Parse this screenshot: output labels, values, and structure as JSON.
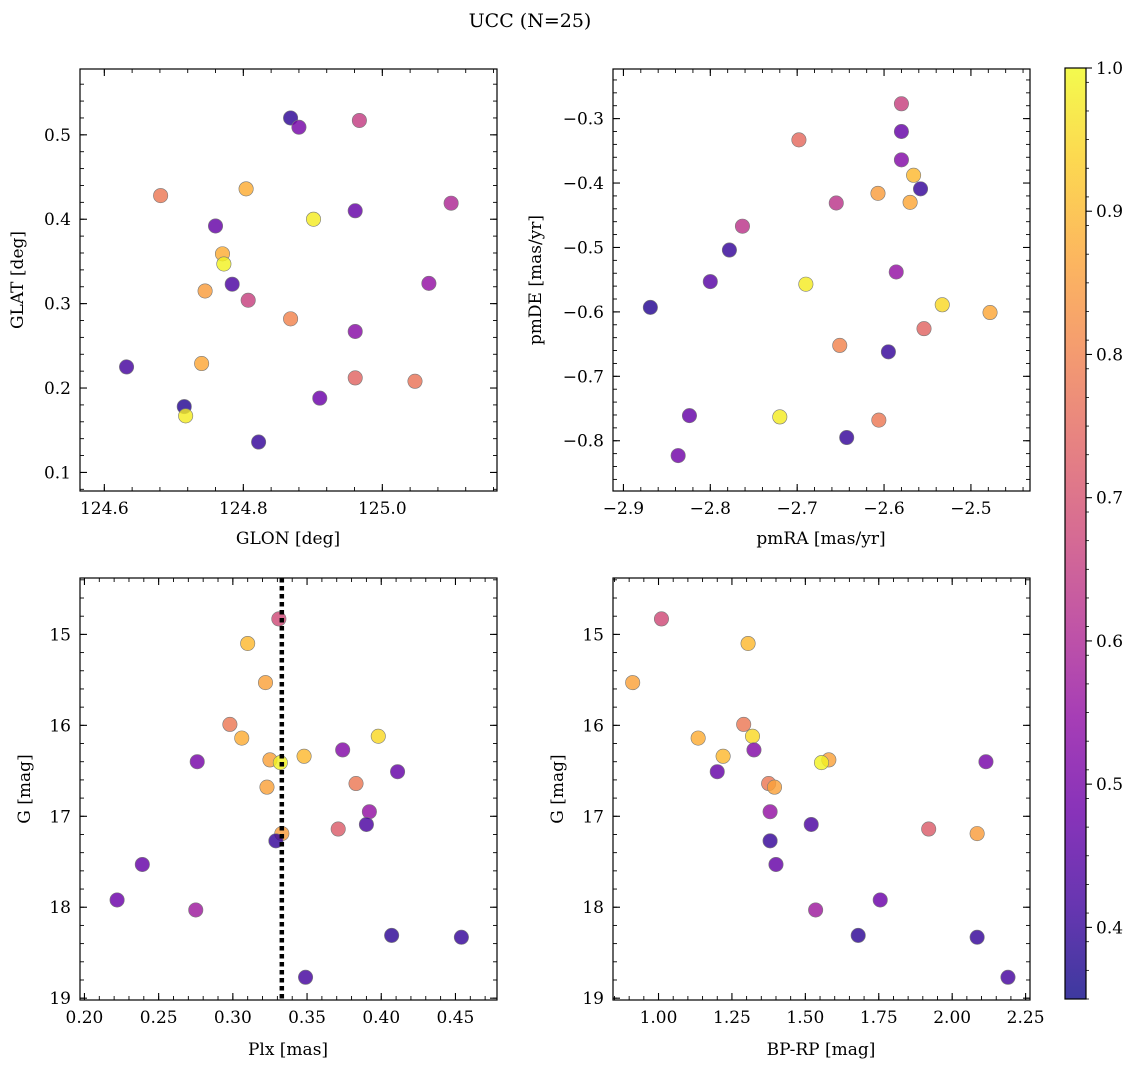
{
  "figure": {
    "title": "UCC (N=25)"
  },
  "colorbar": {
    "min": 0.35,
    "max": 1.0,
    "ticks": [
      "0.4",
      "0.5",
      "0.6",
      "0.7",
      "0.8",
      "0.9",
      "1.0"
    ],
    "colormap": "plasma"
  },
  "chart_data": [
    {
      "id": "p1",
      "type": "scatter",
      "xlabel": "GLON [deg]",
      "ylabel": "GLAT [deg]",
      "xlim": [
        124.565,
        125.165
      ],
      "ylim": [
        0.078,
        0.578
      ],
      "xticks": [
        "124.6",
        "124.8",
        "125.0"
      ],
      "yticks": [
        "0.1",
        "0.2",
        "0.3",
        "0.4",
        "0.5"
      ],
      "y_inverted": false,
      "points": [
        {
          "x": 124.868,
          "y": 0.52,
          "c": 0.39
        },
        {
          "x": 124.88,
          "y": 0.509,
          "c": 0.5
        },
        {
          "x": 124.967,
          "y": 0.517,
          "c": 0.65
        },
        {
          "x": 124.681,
          "y": 0.428,
          "c": 0.78
        },
        {
          "x": 124.804,
          "y": 0.436,
          "c": 0.88
        },
        {
          "x": 124.901,
          "y": 0.4,
          "c": 0.98
        },
        {
          "x": 124.961,
          "y": 0.41,
          "c": 0.47
        },
        {
          "x": 125.099,
          "y": 0.419,
          "c": 0.6
        },
        {
          "x": 124.76,
          "y": 0.392,
          "c": 0.47
        },
        {
          "x": 124.77,
          "y": 0.359,
          "c": 0.88
        },
        {
          "x": 124.772,
          "y": 0.347,
          "c": 0.99
        },
        {
          "x": 124.784,
          "y": 0.323,
          "c": 0.43
        },
        {
          "x": 124.745,
          "y": 0.315,
          "c": 0.85
        },
        {
          "x": 124.807,
          "y": 0.304,
          "c": 0.66
        },
        {
          "x": 124.868,
          "y": 0.282,
          "c": 0.8
        },
        {
          "x": 125.067,
          "y": 0.324,
          "c": 0.55
        },
        {
          "x": 124.961,
          "y": 0.267,
          "c": 0.53
        },
        {
          "x": 124.632,
          "y": 0.225,
          "c": 0.42
        },
        {
          "x": 124.74,
          "y": 0.229,
          "c": 0.87
        },
        {
          "x": 124.961,
          "y": 0.212,
          "c": 0.74
        },
        {
          "x": 125.047,
          "y": 0.208,
          "c": 0.77
        },
        {
          "x": 124.715,
          "y": 0.178,
          "c": 0.38
        },
        {
          "x": 124.717,
          "y": 0.167,
          "c": 0.98
        },
        {
          "x": 124.91,
          "y": 0.188,
          "c": 0.48
        },
        {
          "x": 124.822,
          "y": 0.136,
          "c": 0.4
        }
      ]
    },
    {
      "id": "p2",
      "type": "scatter",
      "xlabel": "pmRA [mas/yr]",
      "ylabel": "pmDE [mas/yr]",
      "xlim": [
        -2.912,
        -2.432
      ],
      "ylim": [
        -0.878,
        -0.223
      ],
      "xticks": [
        "−2.9",
        "−2.8",
        "−2.7",
        "−2.6",
        "−2.5"
      ],
      "yticks": [
        "−0.3",
        "−0.4",
        "−0.5",
        "−0.6",
        "−0.7",
        "−0.8"
      ],
      "y_inverted": false,
      "points": [
        {
          "x": -2.58,
          "y": -0.277,
          "c": 0.66
        },
        {
          "x": -2.58,
          "y": -0.32,
          "c": 0.47
        },
        {
          "x": -2.698,
          "y": -0.333,
          "c": 0.75
        },
        {
          "x": -2.58,
          "y": -0.364,
          "c": 0.52
        },
        {
          "x": -2.566,
          "y": -0.388,
          "c": 0.9
        },
        {
          "x": -2.558,
          "y": -0.409,
          "c": 0.4
        },
        {
          "x": -2.607,
          "y": -0.416,
          "c": 0.85
        },
        {
          "x": -2.57,
          "y": -0.43,
          "c": 0.87
        },
        {
          "x": -2.655,
          "y": -0.431,
          "c": 0.63
        },
        {
          "x": -2.763,
          "y": -0.467,
          "c": 0.63
        },
        {
          "x": -2.778,
          "y": -0.504,
          "c": 0.4
        },
        {
          "x": -2.8,
          "y": -0.553,
          "c": 0.45
        },
        {
          "x": -2.69,
          "y": -0.557,
          "c": 0.98
        },
        {
          "x": -2.586,
          "y": -0.538,
          "c": 0.55
        },
        {
          "x": -2.869,
          "y": -0.593,
          "c": 0.38
        },
        {
          "x": -2.533,
          "y": -0.589,
          "c": 0.95
        },
        {
          "x": -2.478,
          "y": -0.601,
          "c": 0.87
        },
        {
          "x": -2.554,
          "y": -0.626,
          "c": 0.74
        },
        {
          "x": -2.651,
          "y": -0.652,
          "c": 0.8
        },
        {
          "x": -2.595,
          "y": -0.662,
          "c": 0.4
        },
        {
          "x": -2.824,
          "y": -0.761,
          "c": 0.47
        },
        {
          "x": -2.72,
          "y": -0.763,
          "c": 0.98
        },
        {
          "x": -2.606,
          "y": -0.768,
          "c": 0.78
        },
        {
          "x": -2.643,
          "y": -0.795,
          "c": 0.4
        },
        {
          "x": -2.837,
          "y": -0.823,
          "c": 0.49
        }
      ]
    },
    {
      "id": "p3",
      "type": "scatter",
      "xlabel": "Plx [mas]",
      "ylabel": "G [mag]",
      "xlim": [
        0.197,
        0.478
      ],
      "ylim": [
        14.38,
        19.02
      ],
      "xticks": [
        "0.20",
        "0.25",
        "0.30",
        "0.35",
        "0.40",
        "0.45"
      ],
      "yticks": [
        "15",
        "16",
        "17",
        "18",
        "19"
      ],
      "y_inverted": true,
      "vline": {
        "x": 0.333,
        "style": "dotted"
      },
      "points": [
        {
          "x": 0.331,
          "y": 14.83,
          "c": 0.68
        },
        {
          "x": 0.31,
          "y": 15.1,
          "c": 0.9
        },
        {
          "x": 0.322,
          "y": 15.53,
          "c": 0.86
        },
        {
          "x": 0.298,
          "y": 15.99,
          "c": 0.78
        },
        {
          "x": 0.306,
          "y": 16.14,
          "c": 0.88
        },
        {
          "x": 0.398,
          "y": 16.12,
          "c": 0.95
        },
        {
          "x": 0.348,
          "y": 16.34,
          "c": 0.9
        },
        {
          "x": 0.374,
          "y": 16.27,
          "c": 0.52
        },
        {
          "x": 0.325,
          "y": 16.38,
          "c": 0.86
        },
        {
          "x": 0.332,
          "y": 16.41,
          "c": 0.99
        },
        {
          "x": 0.276,
          "y": 16.4,
          "c": 0.5
        },
        {
          "x": 0.411,
          "y": 16.51,
          "c": 0.47
        },
        {
          "x": 0.383,
          "y": 16.64,
          "c": 0.78
        },
        {
          "x": 0.323,
          "y": 16.68,
          "c": 0.86
        },
        {
          "x": 0.392,
          "y": 16.95,
          "c": 0.55
        },
        {
          "x": 0.371,
          "y": 17.14,
          "c": 0.72
        },
        {
          "x": 0.333,
          "y": 17.19,
          "c": 0.85
        },
        {
          "x": 0.39,
          "y": 17.09,
          "c": 0.43
        },
        {
          "x": 0.329,
          "y": 17.27,
          "c": 0.4
        },
        {
          "x": 0.239,
          "y": 17.53,
          "c": 0.47
        },
        {
          "x": 0.222,
          "y": 17.92,
          "c": 0.48
        },
        {
          "x": 0.275,
          "y": 18.03,
          "c": 0.57
        },
        {
          "x": 0.407,
          "y": 18.31,
          "c": 0.39
        },
        {
          "x": 0.454,
          "y": 18.33,
          "c": 0.4
        },
        {
          "x": 0.349,
          "y": 18.77,
          "c": 0.42
        }
      ]
    },
    {
      "id": "p4",
      "type": "scatter",
      "xlabel": "BP-RP [mag]",
      "ylabel": "G [mag]",
      "xlim": [
        0.845,
        2.265
      ],
      "ylim": [
        14.38,
        19.02
      ],
      "xticks": [
        "1.00",
        "1.25",
        "1.50",
        "1.75",
        "2.00",
        "2.25"
      ],
      "yticks": [
        "15",
        "16",
        "17",
        "18",
        "19"
      ],
      "y_inverted": true,
      "points": [
        {
          "x": 1.01,
          "y": 14.83,
          "c": 0.68
        },
        {
          "x": 1.305,
          "y": 15.1,
          "c": 0.9
        },
        {
          "x": 0.912,
          "y": 15.53,
          "c": 0.86
        },
        {
          "x": 1.29,
          "y": 15.99,
          "c": 0.78
        },
        {
          "x": 1.135,
          "y": 16.14,
          "c": 0.88
        },
        {
          "x": 1.32,
          "y": 16.12,
          "c": 0.95
        },
        {
          "x": 1.22,
          "y": 16.34,
          "c": 0.9
        },
        {
          "x": 1.325,
          "y": 16.27,
          "c": 0.52
        },
        {
          "x": 1.58,
          "y": 16.38,
          "c": 0.86
        },
        {
          "x": 1.555,
          "y": 16.41,
          "c": 0.99
        },
        {
          "x": 2.115,
          "y": 16.4,
          "c": 0.5
        },
        {
          "x": 1.2,
          "y": 16.51,
          "c": 0.47
        },
        {
          "x": 1.375,
          "y": 16.64,
          "c": 0.78
        },
        {
          "x": 1.395,
          "y": 16.68,
          "c": 0.86
        },
        {
          "x": 1.38,
          "y": 16.95,
          "c": 0.55
        },
        {
          "x": 1.92,
          "y": 17.14,
          "c": 0.72
        },
        {
          "x": 2.085,
          "y": 17.19,
          "c": 0.85
        },
        {
          "x": 1.52,
          "y": 17.09,
          "c": 0.43
        },
        {
          "x": 1.38,
          "y": 17.27,
          "c": 0.4
        },
        {
          "x": 1.4,
          "y": 17.53,
          "c": 0.47
        },
        {
          "x": 1.755,
          "y": 17.92,
          "c": 0.48
        },
        {
          "x": 1.535,
          "y": 18.03,
          "c": 0.57
        },
        {
          "x": 1.68,
          "y": 18.31,
          "c": 0.39
        },
        {
          "x": 2.085,
          "y": 18.33,
          "c": 0.4
        },
        {
          "x": 2.19,
          "y": 18.77,
          "c": 0.42
        }
      ]
    }
  ]
}
